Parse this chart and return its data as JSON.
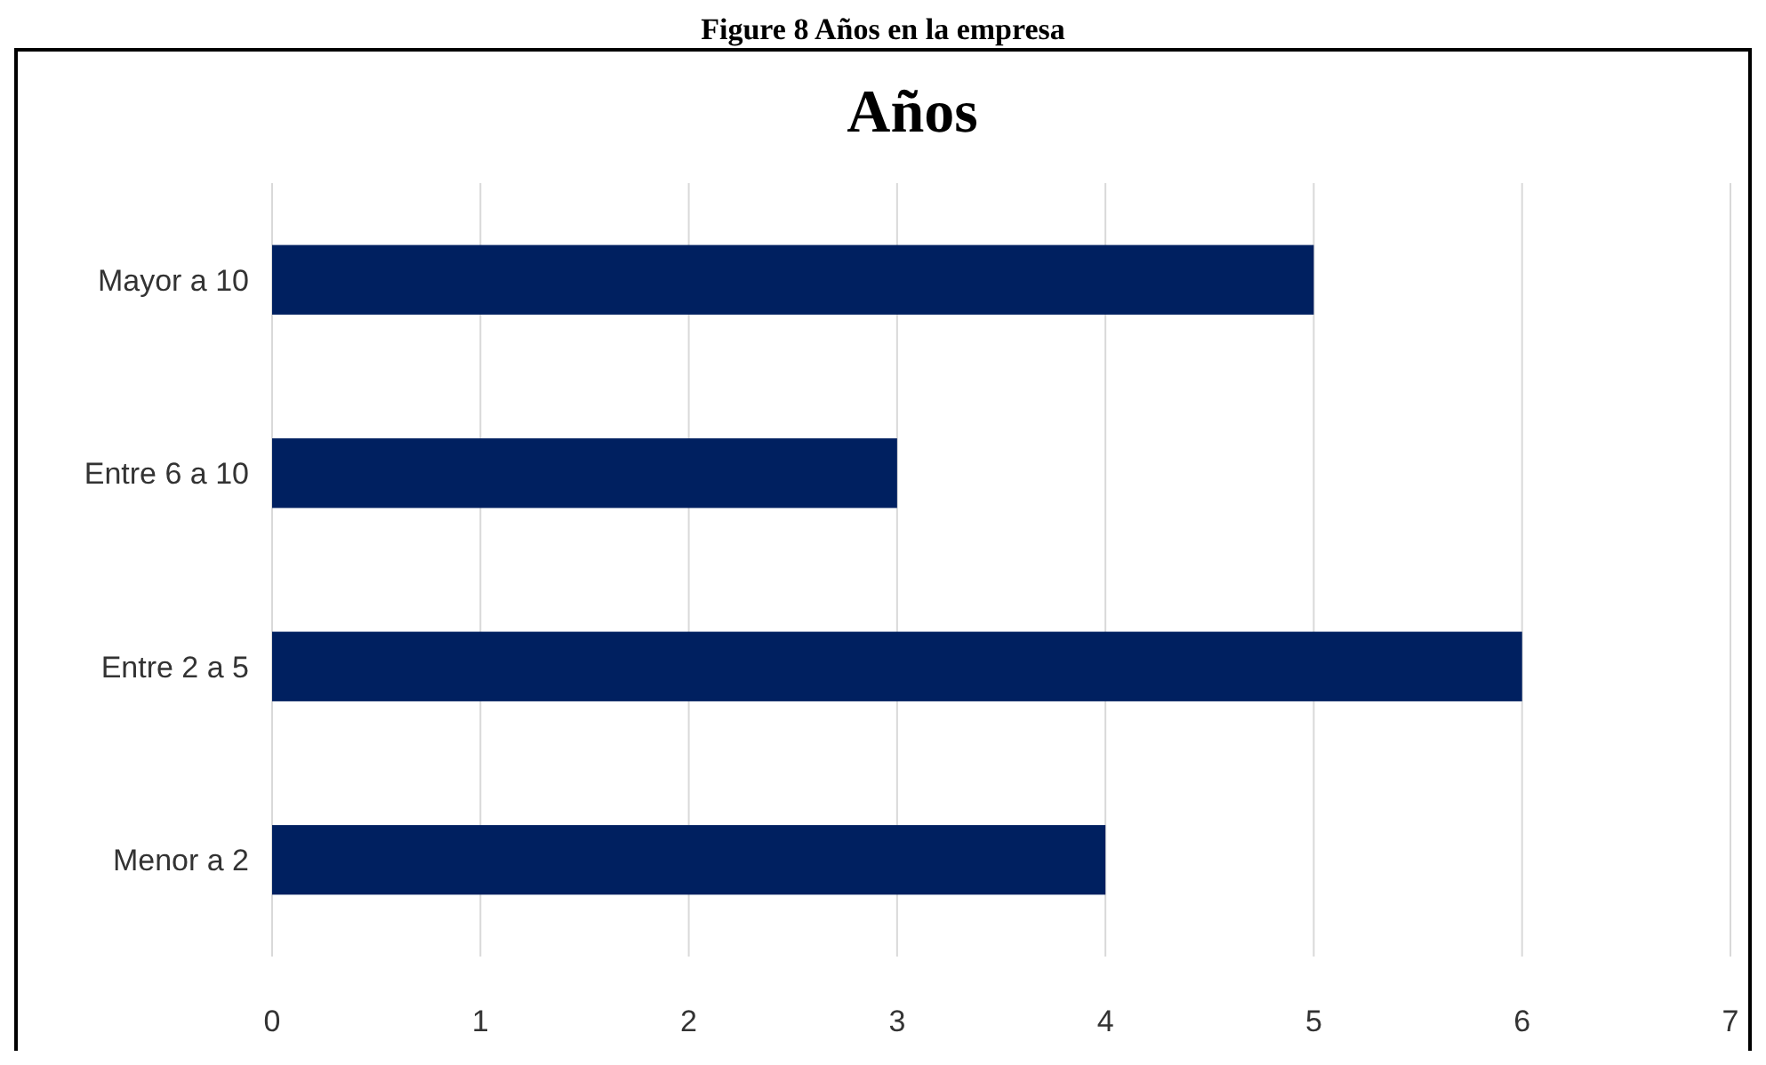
{
  "chart_data": {
    "type": "bar",
    "orientation": "horizontal",
    "title": "Años",
    "annotations": [
      "Figure 8 Años en la empresa"
    ],
    "categories": [
      "Mayor a 10",
      "Entre 6 a 10",
      "Entre 2 a 5",
      "Menor a 2"
    ],
    "values": [
      5,
      3,
      6,
      4
    ],
    "color": "#002060",
    "xlim": [
      0,
      7
    ],
    "xticks": [
      0,
      1,
      2,
      3,
      4,
      5,
      6,
      7
    ],
    "grid": "x"
  }
}
